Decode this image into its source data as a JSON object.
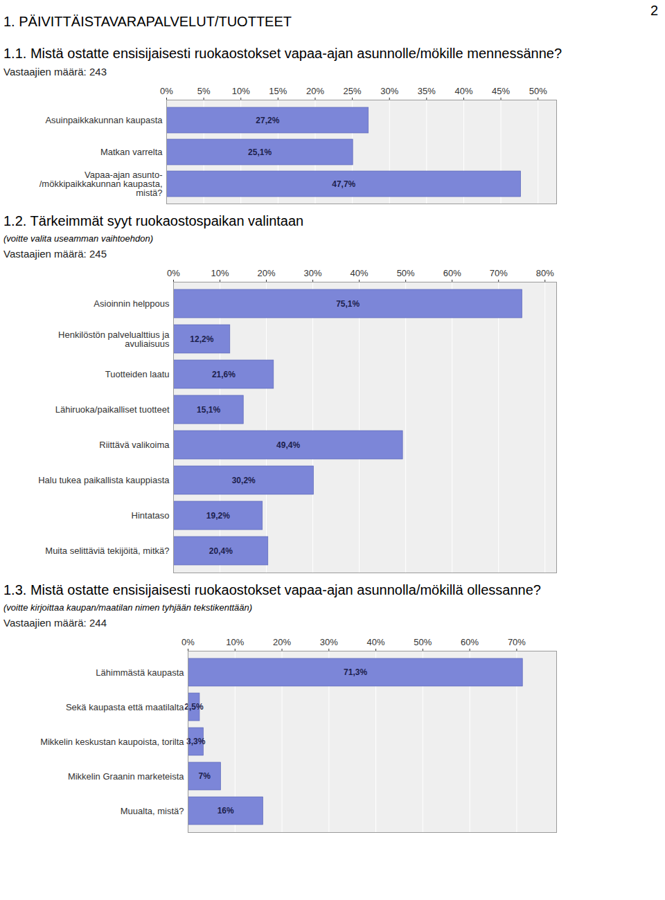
{
  "page": {
    "heading": "1. PÄIVITTÄISTAVARAPALVELUT/TUOTTEET",
    "page_number": 2
  },
  "chart_data": [
    {
      "type": "bar",
      "orientation": "horizontal",
      "title": "1.1. Mistä ostatte ensisijaisesti ruokaostokset vapaa-ajan asunnolle/mökille mennessänne?",
      "subtitle": "Vastaajien määrä: 243",
      "categories": [
        "Asuinpaikkakunnan kaupasta",
        "Matkan varrelta",
        "Vapaa-ajan asunto-\n/mökkipaikkakunnan kaupasta,\nmistä?"
      ],
      "values": [
        27.2,
        25.1,
        47.7
      ],
      "value_labels": [
        "27,2%",
        "25,1%",
        "47,7%"
      ],
      "data_labels": true,
      "grid": true,
      "color": "#7c86d8",
      "xlim": [
        0,
        52.5
      ],
      "xticks": [
        {
          "value": 0,
          "label": "0%"
        },
        {
          "value": 5,
          "label": "5%"
        },
        {
          "value": 10,
          "label": "10%"
        },
        {
          "value": 15,
          "label": "15%"
        },
        {
          "value": 20,
          "label": "20%"
        },
        {
          "value": 25,
          "label": "25%"
        },
        {
          "value": 30,
          "label": "30%"
        },
        {
          "value": 35,
          "label": "35%"
        },
        {
          "value": 40,
          "label": "40%"
        },
        {
          "value": 45,
          "label": "45%"
        },
        {
          "value": 50,
          "label": "50%"
        }
      ]
    },
    {
      "type": "bar",
      "orientation": "horizontal",
      "title": "1.2. Tärkeimmät syyt ruokaostospaikan valintaan",
      "annotations": [
        "(voitte valita useamman vaihtoehdon)"
      ],
      "subtitle": "Vastaajien määrä: 245",
      "categories": [
        "Asioinnin helppous",
        "Henkilöstön palvelualttius ja\navuliaisuus",
        "Tuotteiden laatu",
        "Lähiruoka/paikalliset tuotteet",
        "Riittävä valikoima",
        "Halu tukea paikallista kauppiasta",
        "Hintataso",
        "Muita selittäviä tekijöitä, mitkä?"
      ],
      "values": [
        75.1,
        12.2,
        21.6,
        15.1,
        49.4,
        30.2,
        19.2,
        20.4
      ],
      "value_labels": [
        "75,1%",
        "12,2%",
        "21,6%",
        "15,1%",
        "49,4%",
        "30,2%",
        "19,2%",
        "20,4%"
      ],
      "data_labels": true,
      "grid": true,
      "color": "#7c86d8",
      "xlim": [
        0,
        82.5
      ],
      "xticks": [
        {
          "value": 0,
          "label": "0%"
        },
        {
          "value": 10,
          "label": "10%"
        },
        {
          "value": 20,
          "label": "20%"
        },
        {
          "value": 30,
          "label": "30%"
        },
        {
          "value": 40,
          "label": "40%"
        },
        {
          "value": 50,
          "label": "50%"
        },
        {
          "value": 60,
          "label": "60%"
        },
        {
          "value": 70,
          "label": "70%"
        },
        {
          "value": 80,
          "label": "80%"
        }
      ]
    },
    {
      "type": "bar",
      "orientation": "horizontal",
      "title": "1.3. Mistä ostatte ensisijaisesti ruokaostokset vapaa-ajan asunnolla/mökillä ollessanne?",
      "annotations": [
        "(voitte kirjoittaa kaupan/maatilan nimen tyhjään tekstikenttään)"
      ],
      "subtitle": "Vastaajien määrä: 244",
      "categories": [
        "Lähimmästä kaupasta",
        "Sekä kaupasta että maatilalta",
        "Mikkelin keskustan kaupoista, torilta",
        "Mikkelin Graanin marketeista",
        "Muualta, mistä?"
      ],
      "values": [
        71.3,
        2.5,
        3.3,
        7,
        16
      ],
      "value_labels": [
        "71,3%",
        "2,5%",
        "3,3%",
        "7%",
        "16%"
      ],
      "data_labels": true,
      "grid": true,
      "color": "#7c86d8",
      "xlim": [
        0,
        78.5
      ],
      "xticks": [
        {
          "value": 0,
          "label": "0%"
        },
        {
          "value": 10,
          "label": "10%"
        },
        {
          "value": 20,
          "label": "20%"
        },
        {
          "value": 30,
          "label": "30%"
        },
        {
          "value": 40,
          "label": "40%"
        },
        {
          "value": 50,
          "label": "50%"
        },
        {
          "value": 60,
          "label": "60%"
        },
        {
          "value": 70,
          "label": "70%"
        }
      ]
    }
  ]
}
